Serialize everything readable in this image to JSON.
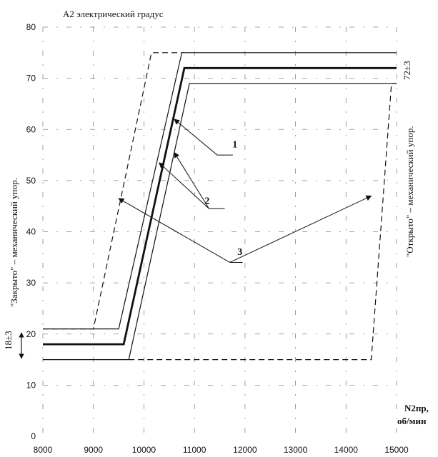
{
  "chart_data": {
    "type": "line",
    "y_axis_label": "A2 электрический градус",
    "x_axis_label_line1": "N2пр,",
    "x_axis_label_line2": "об/мин",
    "x_ticks": [
      8000,
      9000,
      10000,
      11000,
      12000,
      13000,
      14000,
      15000
    ],
    "y_ticks": [
      0,
      10,
      20,
      30,
      40,
      50,
      60,
      70,
      80
    ],
    "xlim": [
      8000,
      15000
    ],
    "ylim": [
      0,
      80
    ],
    "grid": "dash-dot",
    "left_side_label": "\"Закрыто\" – механический упор.",
    "right_side_label": "\"Открыто\" – механический упор.",
    "left_value_label": "18±3",
    "right_value_label": "72±3",
    "series": [
      {
        "key": "nominal",
        "style": "thick",
        "points": [
          [
            8000,
            18
          ],
          [
            9600,
            18
          ],
          [
            10800,
            72
          ],
          [
            15000,
            72
          ]
        ]
      },
      {
        "key": "band_left",
        "style": "thin",
        "points": [
          [
            8000,
            21
          ],
          [
            9500,
            21
          ],
          [
            10750,
            75
          ],
          [
            15000,
            75
          ]
        ]
      },
      {
        "key": "band_right",
        "style": "thin",
        "points": [
          [
            8000,
            15
          ],
          [
            9700,
            15
          ],
          [
            10900,
            69
          ],
          [
            15000,
            69
          ]
        ]
      },
      {
        "key": "dashed_left",
        "style": "dashed",
        "points": [
          [
            8000,
            21
          ],
          [
            9000,
            21
          ],
          [
            10150,
            75
          ],
          [
            10750,
            75
          ]
        ]
      },
      {
        "key": "dashed_right",
        "style": "dashed",
        "points": [
          [
            9700,
            15
          ],
          [
            14500,
            15
          ],
          [
            14900,
            69
          ],
          [
            15000,
            69
          ]
        ]
      }
    ],
    "callouts": [
      {
        "text": "1",
        "label_at": [
          11800,
          57
        ],
        "line_from": [
          11450,
          55
        ],
        "arrows_to": [
          [
            10600,
            62
          ]
        ]
      },
      {
        "text": "2",
        "label_at": [
          11250,
          46
        ],
        "line_from": [
          11600,
          44.5
        ],
        "arrows_to": [
          [
            10300,
            53.5
          ],
          [
            10600,
            55.5
          ]
        ]
      },
      {
        "text": "3",
        "label_at": [
          11900,
          36
        ],
        "line_from": [
          11700,
          34
        ],
        "arrows_to": [
          [
            9500,
            46.5
          ],
          [
            14500,
            47
          ]
        ]
      }
    ]
  }
}
